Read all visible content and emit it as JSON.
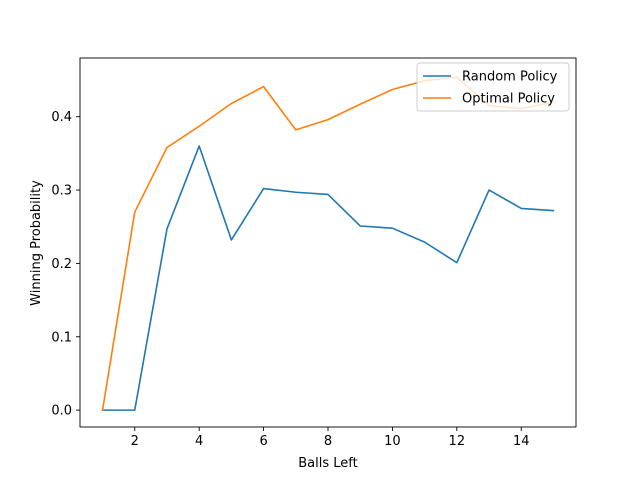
{
  "chart_data": {
    "type": "line",
    "title": "",
    "xlabel": "Balls Left",
    "ylabel": "Winning Probability",
    "xlim": [
      0.3,
      15.7
    ],
    "ylim": [
      -0.023,
      0.48
    ],
    "xticks": [
      2,
      4,
      6,
      8,
      10,
      12,
      14
    ],
    "yticks": [
      0.0,
      0.1,
      0.2,
      0.3,
      0.4
    ],
    "ytick_labels": [
      "0.0",
      "0.1",
      "0.2",
      "0.3",
      "0.4"
    ],
    "grid": false,
    "legend_position": "upper right",
    "x": [
      1,
      2,
      3,
      4,
      5,
      6,
      7,
      8,
      9,
      10,
      11,
      12,
      13,
      14,
      15
    ],
    "series": [
      {
        "name": "Random Policy",
        "color": "#1f77b4",
        "values": [
          0.0,
          0.0,
          0.247,
          0.36,
          0.232,
          0.302,
          0.297,
          0.294,
          0.251,
          0.248,
          0.229,
          0.201,
          0.3,
          0.275,
          0.272
        ]
      },
      {
        "name": "Optimal Policy",
        "color": "#ff7f0e",
        "values": [
          0.0,
          0.27,
          0.358,
          0.387,
          0.418,
          0.441,
          0.382,
          0.396,
          0.417,
          0.437,
          0.449,
          0.454,
          0.415,
          0.411,
          0.42
        ]
      }
    ]
  }
}
